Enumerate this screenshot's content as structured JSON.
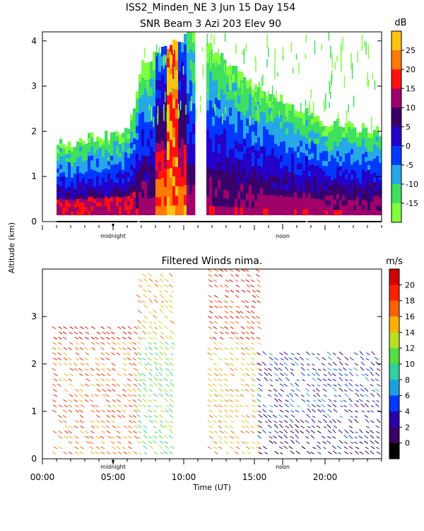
{
  "header": {
    "line1": "ISS2_Minden_NE    3 Jun 15 Day 154",
    "line2": "SNR Beam 3 Azi 203 Elev 90"
  },
  "y_axis_label": "Altitude (km)",
  "x_axis_label": "Time (UT)",
  "markers": {
    "midnight": "midnight",
    "noon": "noon"
  },
  "x_ticks": [
    "00:00",
    "05:00",
    "10:00",
    "15:00",
    "20:00"
  ],
  "colors": {
    "snr_scale": [
      "#7fff3f",
      "#3fdf60",
      "#26a8e8",
      "#0038ff",
      "#2400c8",
      "#38006a",
      "#a0006a",
      "#ff1010",
      "#ff7a00",
      "#ffc410"
    ],
    "wind_scale": [
      "#000000",
      "#3a0066",
      "#2a00a8",
      "#0038ff",
      "#1aa0e0",
      "#30d0a0",
      "#52e040",
      "#b8e020",
      "#ffb000",
      "#ff6000",
      "#ff2000",
      "#d00000"
    ]
  },
  "chart_data": [
    {
      "type": "heatmap",
      "title": "SNR Beam 3 Azi 203 Elev 90",
      "xlabel": "",
      "ylabel": "Altitude (km)",
      "xlim": [
        0,
        24
      ],
      "ylim": [
        0,
        4.2
      ],
      "y_ticks": [
        "0",
        "1",
        "2",
        "3",
        "4"
      ],
      "colorbar": {
        "unit": "dB",
        "ticks": [
          "25",
          "20",
          "15",
          "10",
          "5",
          "0",
          "-5",
          "-10",
          "-15"
        ],
        "range": [
          -17.5,
          32.5
        ]
      },
      "profile_samples": [
        {
          "time": 1.0,
          "top_km": 1.7
        },
        {
          "time": 4.0,
          "top_km": 1.9
        },
        {
          "time": 6.0,
          "top_km": 2.0
        },
        {
          "time": 7.0,
          "top_km": 3.5
        },
        {
          "time": 10.5,
          "top_km": 4.2
        },
        {
          "time": 15.0,
          "top_km": 3.0
        },
        {
          "time": 20.0,
          "top_km": 2.2
        },
        {
          "time": 24.0,
          "top_km": 2.0
        }
      ]
    },
    {
      "type": "scatter",
      "title": "Filtered Winds nima.",
      "xlabel": "Time (UT)",
      "ylabel": "",
      "xlim": [
        0,
        24
      ],
      "ylim": [
        0,
        4.0
      ],
      "y_ticks": [
        "0",
        "1",
        "2",
        "3"
      ],
      "colorbar": {
        "unit": "m/s",
        "ticks": [
          "20",
          "18",
          "16",
          "14",
          "12",
          "10",
          "8",
          "6",
          "4",
          "2",
          "0"
        ],
        "range": [
          0,
          22
        ]
      },
      "wind_regions": [
        {
          "t_start": 1.0,
          "t_end": 7.0,
          "alt_top": 2.8,
          "speed": 18
        },
        {
          "t_start": 7.0,
          "t_end": 9.5,
          "alt_top": 3.9,
          "speed": 12
        },
        {
          "t_start": 12.0,
          "t_end": 15.5,
          "alt_top": 4.0,
          "speed": 16
        },
        {
          "t_start": 15.5,
          "t_end": 24.0,
          "alt_top": 2.3,
          "speed": 5
        }
      ]
    }
  ]
}
